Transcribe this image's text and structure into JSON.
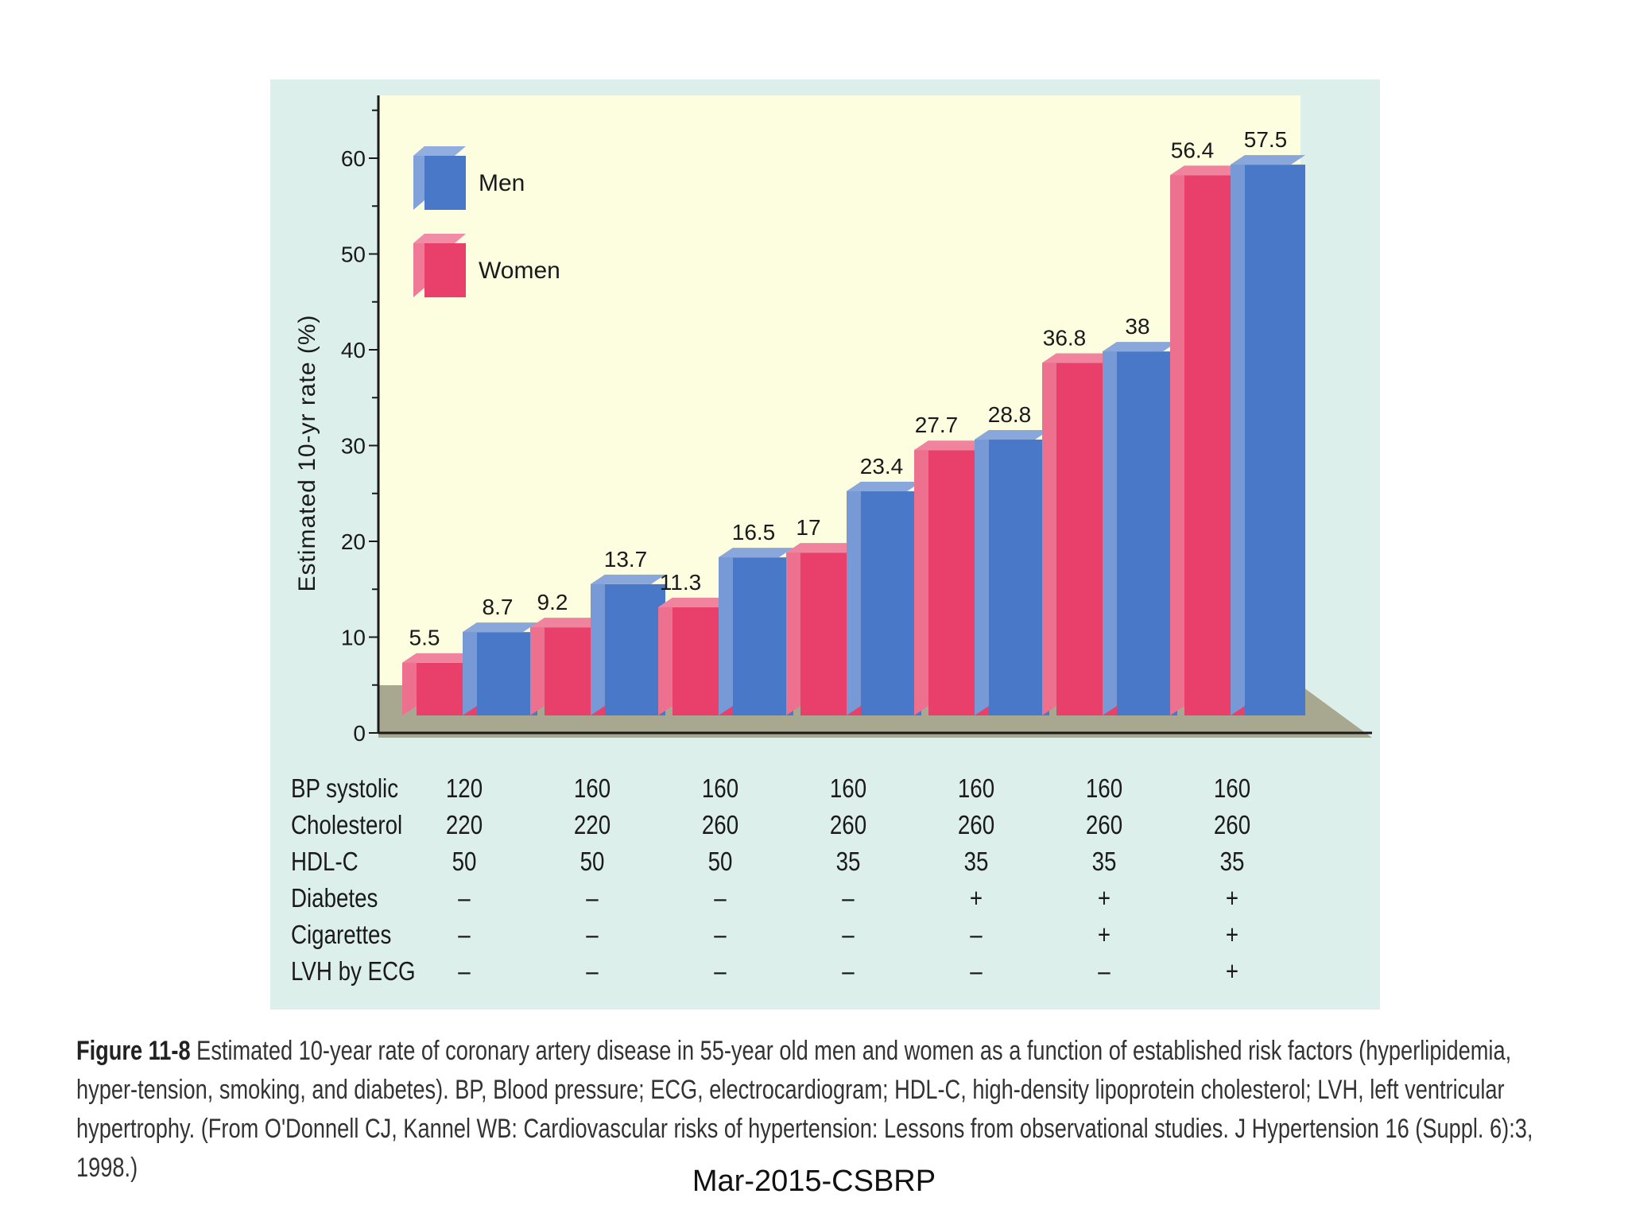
{
  "chart_data": {
    "type": "bar",
    "style": "3d-grouped",
    "ylabel": "Estimated 10-yr rate (%)",
    "xlabel": "",
    "ylim": [
      0,
      65
    ],
    "yticks": [
      0,
      10,
      20,
      30,
      40,
      50,
      60
    ],
    "legend": {
      "position": "top-left"
    },
    "series": [
      {
        "name": "Women",
        "color": "#e8406a",
        "values": [
          5.5,
          9.2,
          11.3,
          17,
          27.7,
          36.8,
          56.4
        ]
      },
      {
        "name": "Men",
        "color": "#4a78c8",
        "values": [
          8.7,
          13.7,
          16.5,
          23.4,
          28.8,
          38,
          57.5
        ]
      }
    ],
    "legend_entries": [
      "Men",
      "Women"
    ]
  },
  "risk_factors": {
    "rows": [
      {
        "label": "BP systolic",
        "values": [
          "120",
          "160",
          "160",
          "160",
          "160",
          "160",
          "160"
        ]
      },
      {
        "label": "Cholesterol",
        "values": [
          "220",
          "220",
          "260",
          "260",
          "260",
          "260",
          "260"
        ]
      },
      {
        "label": "HDL-C",
        "values": [
          "50",
          "50",
          "50",
          "35",
          "35",
          "35",
          "35"
        ]
      },
      {
        "label": "Diabetes",
        "values": [
          "–",
          "–",
          "–",
          "–",
          "+",
          "+",
          "+"
        ]
      },
      {
        "label": "Cigarettes",
        "values": [
          "–",
          "–",
          "–",
          "–",
          "–",
          "+",
          "+"
        ]
      },
      {
        "label": "LVH by ECG",
        "values": [
          "–",
          "–",
          "–",
          "–",
          "–",
          "–",
          "+"
        ]
      }
    ]
  },
  "caption": {
    "label": "Figure 11-8",
    "text": "Estimated 10-year rate of coronary artery disease in 55-year old men and women as a function of established risk factors (hyperlipidemia, hyper-tension, smoking, and diabetes). BP, Blood pressure; ECG, electrocardiogram; HDL-C, high-density lipoprotein cholesterol; LVH, left ventricular hypertrophy. (From O'Donnell CJ, Kannel WB: Cardiovascular risks of hypertension: Lessons from observational studies. J Hypertension 16 (Suppl. 6):3, 1998.)"
  },
  "footer": "Mar-2015-CSBRP"
}
